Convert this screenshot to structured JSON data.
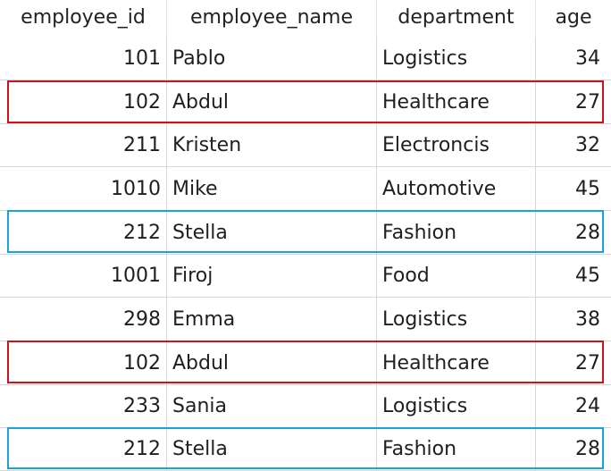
{
  "table": {
    "columns": [
      "employee_id",
      "employee_name",
      "department",
      "age"
    ],
    "rows": [
      {
        "employee_id": "101",
        "employee_name": "Pablo",
        "department": "Logistics",
        "age": "34"
      },
      {
        "employee_id": "102",
        "employee_name": "Abdul",
        "department": "Healthcare",
        "age": "27"
      },
      {
        "employee_id": "211",
        "employee_name": "Kristen",
        "department": "Electroncis",
        "age": "32"
      },
      {
        "employee_id": "1010",
        "employee_name": "Mike",
        "department": "Automotive",
        "age": "45"
      },
      {
        "employee_id": "212",
        "employee_name": "Stella",
        "department": "Fashion",
        "age": "28"
      },
      {
        "employee_id": "1001",
        "employee_name": "Firoj",
        "department": "Food",
        "age": "45"
      },
      {
        "employee_id": "298",
        "employee_name": "Emma",
        "department": "Logistics",
        "age": "38"
      },
      {
        "employee_id": "102",
        "employee_name": "Abdul",
        "department": "Healthcare",
        "age": "27"
      },
      {
        "employee_id": "233",
        "employee_name": "Sania",
        "department": "Logistics",
        "age": "24"
      },
      {
        "employee_id": "212",
        "employee_name": "Stella",
        "department": "Fashion",
        "age": "28"
      }
    ]
  },
  "highlights": [
    {
      "row": 1,
      "color": "#c8141b"
    },
    {
      "row": 4,
      "color": "#1aa3d6"
    },
    {
      "row": 7,
      "color": "#c8141b"
    },
    {
      "row": 9,
      "color": "#1aa3d6"
    }
  ]
}
